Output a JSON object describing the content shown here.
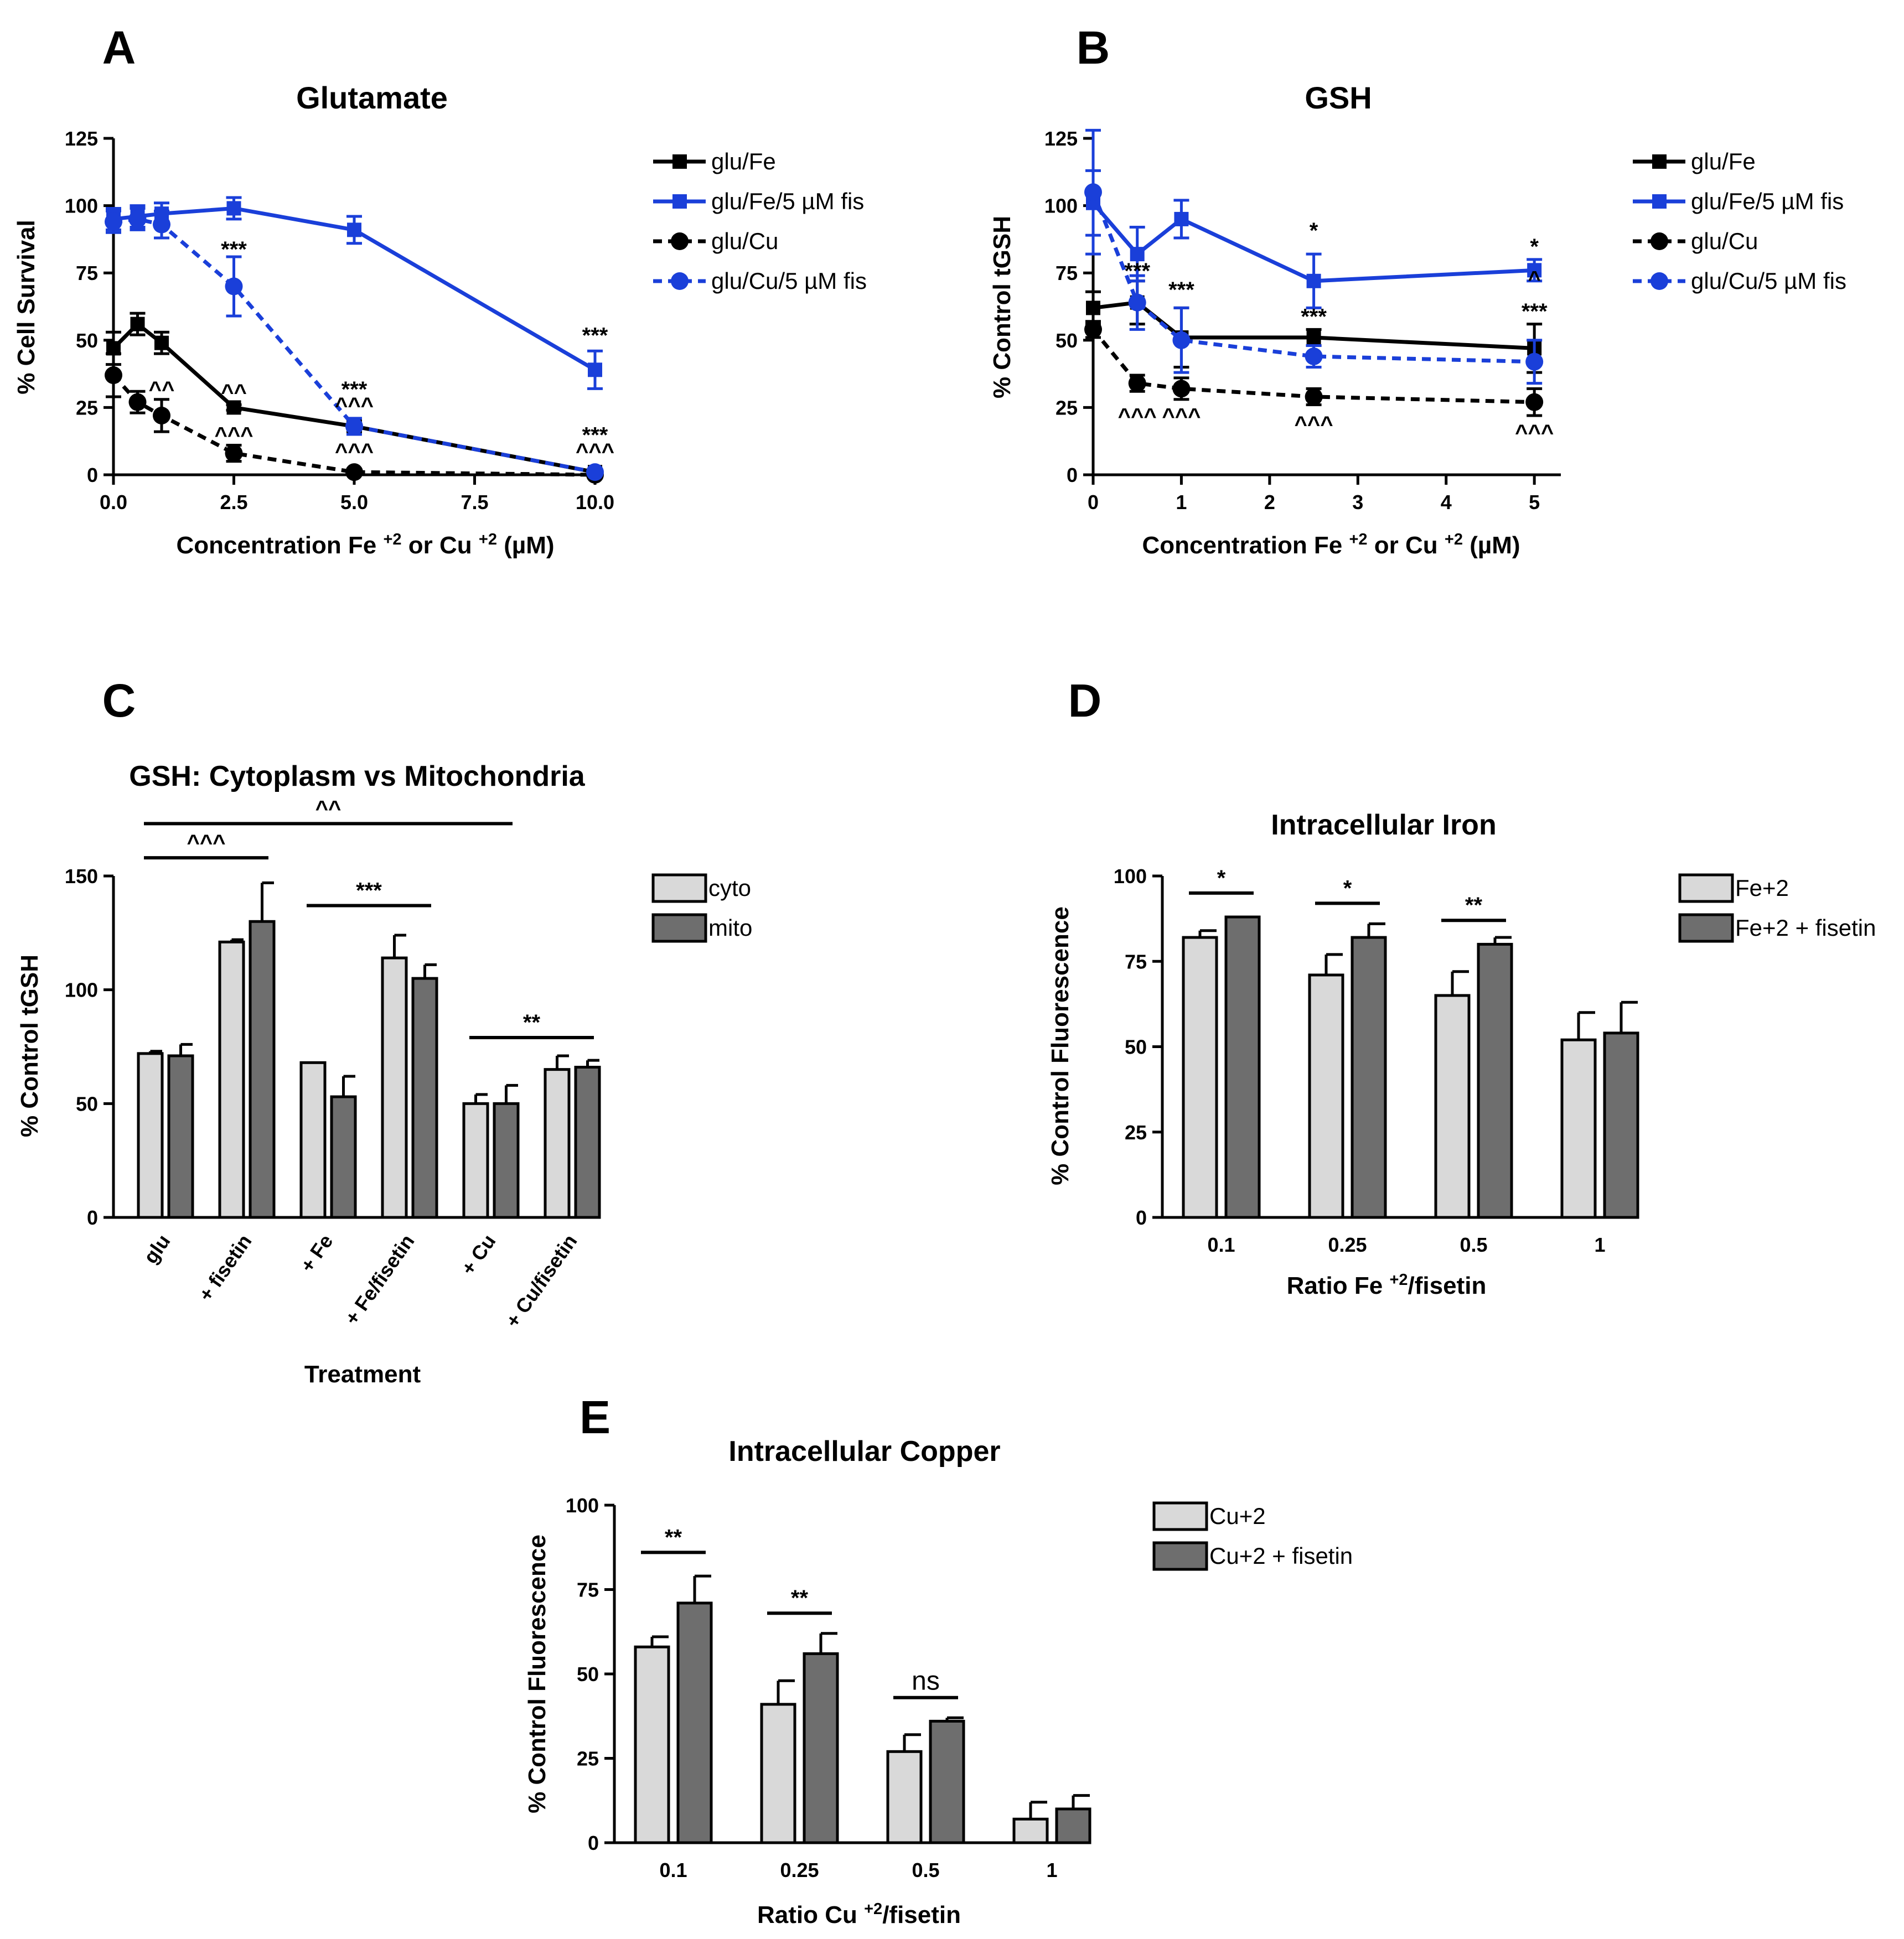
{
  "figure": {
    "panels": [
      "A",
      "B",
      "C",
      "D",
      "E"
    ]
  },
  "chart_data": [
    {
      "panel": "A",
      "type": "line",
      "title": "Glutamate",
      "xlabel": "Concentration Fe +2 or Cu +2 (µM)",
      "ylabel": "% Cell Survival",
      "xlim": [
        0,
        10
      ],
      "ylim": [
        0,
        125
      ],
      "xticks": [
        0,
        2.5,
        5,
        7.5,
        10
      ],
      "xtick_labels": [
        "0.0",
        "2.5",
        "5.0",
        "7.5",
        "10.0"
      ],
      "yticks": [
        0,
        25,
        50,
        75,
        100,
        125
      ],
      "legend_position": "right",
      "series": [
        {
          "name": "glu/Fe",
          "color": "#000000",
          "dash": false,
          "marker": "square",
          "x": [
            0,
            0.5,
            1,
            2.5,
            5,
            10
          ],
          "y": [
            47,
            56,
            49,
            25,
            18,
            1
          ],
          "err": [
            6,
            4,
            4,
            1,
            2,
            1
          ]
        },
        {
          "name": "glu/Fe/5 µM fis",
          "color": "#1a3fd9",
          "dash": false,
          "marker": "square",
          "x": [
            0,
            0.5,
            1,
            2.5,
            5,
            10
          ],
          "y": [
            95,
            96,
            97,
            99,
            91,
            39
          ],
          "err": [
            4,
            4,
            4,
            4,
            5,
            7
          ]
        },
        {
          "name": "glu/Cu",
          "color": "#000000",
          "dash": true,
          "marker": "circle",
          "x": [
            0,
            0.5,
            1,
            2.5,
            5,
            10
          ],
          "y": [
            37,
            27,
            22,
            8,
            1,
            0
          ],
          "err": [
            8,
            4,
            6,
            3,
            1,
            0
          ]
        },
        {
          "name": "glu/Cu/5 µM fis",
          "color": "#1a3fd9",
          "dash": true,
          "marker": "circle",
          "x": [
            0,
            0.5,
            1,
            2.5,
            5,
            10
          ],
          "y": [
            94,
            95,
            93,
            70,
            18,
            1
          ],
          "err": [
            4,
            4,
            5,
            11,
            3,
            1
          ]
        }
      ],
      "annotations": [
        {
          "x": 2.5,
          "y": 81,
          "text": "***"
        },
        {
          "x": 1,
          "y": 29,
          "text": "^^"
        },
        {
          "x": 2.5,
          "y": 28,
          "text": "^^"
        },
        {
          "x": 2.5,
          "y": 12,
          "text": "^^^"
        },
        {
          "x": 5,
          "y": 29,
          "text": "***"
        },
        {
          "x": 5,
          "y": 23,
          "text": "^^^"
        },
        {
          "x": 5,
          "y": 6,
          "text": "^^^"
        },
        {
          "x": 10,
          "y": 49,
          "text": "***"
        },
        {
          "x": 10,
          "y": 12,
          "text": "***"
        },
        {
          "x": 10,
          "y": 6,
          "text": "^^^"
        }
      ]
    },
    {
      "panel": "B",
      "type": "line",
      "title": "GSH",
      "xlabel": "Concentration Fe +2 or Cu +2 (µM)",
      "ylabel": "% Control tGSH",
      "xlim": [
        0,
        5.3
      ],
      "ylim": [
        0,
        125
      ],
      "xticks": [
        0,
        1,
        2,
        3,
        4,
        5
      ],
      "xtick_labels": [
        "0",
        "1",
        "2",
        "3",
        "4",
        "5"
      ],
      "yticks": [
        0,
        25,
        50,
        75,
        100,
        125
      ],
      "legend_position": "right",
      "series": [
        {
          "name": "glu/Fe",
          "color": "#000000",
          "dash": false,
          "marker": "square",
          "x": [
            0,
            0.5,
            1,
            2.5,
            5
          ],
          "y": [
            62,
            64,
            51,
            51,
            47
          ],
          "err": [
            6,
            8,
            11,
            3,
            9
          ]
        },
        {
          "name": "glu/Fe/5 µM fis",
          "color": "#1a3fd9",
          "dash": false,
          "marker": "square",
          "x": [
            0,
            0.5,
            1,
            2.5,
            5
          ],
          "y": [
            101,
            82,
            95,
            72,
            76
          ],
          "err": [
            12,
            10,
            7,
            10,
            4
          ]
        },
        {
          "name": "glu/Cu",
          "color": "#000000",
          "dash": true,
          "marker": "circle",
          "x": [
            0,
            0.5,
            1,
            2.5,
            5
          ],
          "y": [
            54,
            34,
            32,
            29,
            27
          ],
          "err": [
            3,
            3,
            4,
            3,
            5
          ]
        },
        {
          "name": "glu/Cu/5 µM fis",
          "color": "#1a3fd9",
          "dash": true,
          "marker": "circle",
          "x": [
            0,
            0.5,
            1,
            2.5,
            5
          ],
          "y": [
            105,
            64,
            50,
            44,
            42
          ],
          "err": [
            23,
            10,
            12,
            4,
            8
          ]
        }
      ],
      "annotations": [
        {
          "x": 2.5,
          "y": 88,
          "text": "*"
        },
        {
          "x": 5,
          "y": 82,
          "text": "*"
        },
        {
          "x": 5,
          "y": 70,
          "text": "^"
        },
        {
          "x": 0.5,
          "y": 73,
          "text": "***"
        },
        {
          "x": 1,
          "y": 66,
          "text": "***"
        },
        {
          "x": 2.5,
          "y": 56,
          "text": "***"
        },
        {
          "x": 5,
          "y": 58,
          "text": "***"
        },
        {
          "x": 0.5,
          "y": 19,
          "text": "^^^"
        },
        {
          "x": 1,
          "y": 19,
          "text": "^^^"
        },
        {
          "x": 2.5,
          "y": 16,
          "text": "^^^"
        },
        {
          "x": 5,
          "y": 13,
          "text": "^^^"
        }
      ]
    },
    {
      "panel": "C",
      "type": "bar",
      "title": "GSH: Cytoplasm vs Mitochondria",
      "xlabel": "Treatment",
      "ylabel": "% Control tGSH",
      "ylim": [
        0,
        150
      ],
      "yticks": [
        0,
        50,
        100,
        150
      ],
      "categories": [
        "glu",
        "+ fisetin",
        "+ Fe",
        "+ Fe/fisetin",
        "+ Cu",
        "+ Cu/fisetin"
      ],
      "legend_position": "right",
      "series": [
        {
          "name": "cyto",
          "color": "#d9d9d9",
          "values": [
            72,
            121,
            68,
            114,
            50,
            65
          ],
          "err": [
            1,
            1,
            0,
            10,
            4,
            6
          ]
        },
        {
          "name": "mito",
          "color": "#6e6e6e",
          "values": [
            71,
            130,
            53,
            105,
            50,
            66
          ],
          "err": [
            5,
            17,
            9,
            6,
            8,
            3
          ]
        }
      ],
      "significance": [
        {
          "from": 0,
          "to": 4,
          "y": 173,
          "text": "^^"
        },
        {
          "from": 0,
          "to": 1,
          "y": 158,
          "text": "^^^"
        },
        {
          "from": 2,
          "to": 3,
          "y": 137,
          "text": "***"
        },
        {
          "from": 4,
          "to": 5,
          "y": 79,
          "text": "**"
        }
      ]
    },
    {
      "panel": "D",
      "type": "bar",
      "title": "Intracellular Iron",
      "xlabel": "Ratio Fe +2/fisetin",
      "ylabel": "% Control Fluorescence",
      "ylim": [
        0,
        100
      ],
      "yticks": [
        0,
        25,
        50,
        75,
        100
      ],
      "categories": [
        "0.1",
        "0.25",
        "0.5",
        "1"
      ],
      "legend_position": "right",
      "series": [
        {
          "name": "Fe+2",
          "color": "#d9d9d9",
          "values": [
            82,
            71,
            65,
            52
          ],
          "err": [
            2,
            6,
            7,
            8
          ]
        },
        {
          "name": "Fe+2 + fisetin",
          "color": "#6e6e6e",
          "values": [
            88,
            82,
            80,
            54
          ],
          "err": [
            0,
            4,
            2,
            9
          ]
        }
      ],
      "significance": [
        {
          "from": 0,
          "to": 0,
          "y": 95,
          "text": "*"
        },
        {
          "from": 1,
          "to": 1,
          "y": 92,
          "text": "*"
        },
        {
          "from": 2,
          "to": 2,
          "y": 87,
          "text": "**"
        }
      ]
    },
    {
      "panel": "E",
      "type": "bar",
      "title": "Intracellular Copper",
      "xlabel": "Ratio Cu +2/fisetin",
      "ylabel": "% Control Fluorescence",
      "ylim": [
        0,
        100
      ],
      "yticks": [
        0,
        25,
        50,
        75,
        100
      ],
      "categories": [
        "0.1",
        "0.25",
        "0.5",
        "1"
      ],
      "legend_position": "right",
      "series": [
        {
          "name": "Cu+2",
          "color": "#d9d9d9",
          "values": [
            58,
            41,
            27,
            7
          ],
          "err": [
            3,
            7,
            5,
            5
          ]
        },
        {
          "name": "Cu+2 + fisetin",
          "color": "#6e6e6e",
          "values": [
            71,
            56,
            36,
            10
          ],
          "err": [
            8,
            6,
            1,
            4
          ]
        }
      ],
      "significance": [
        {
          "from": 0,
          "to": 0,
          "y": 86,
          "text": "**"
        },
        {
          "from": 1,
          "to": 1,
          "y": 68,
          "text": "**"
        },
        {
          "from": 2,
          "to": 2,
          "y": 43,
          "text": "ns"
        }
      ]
    }
  ]
}
